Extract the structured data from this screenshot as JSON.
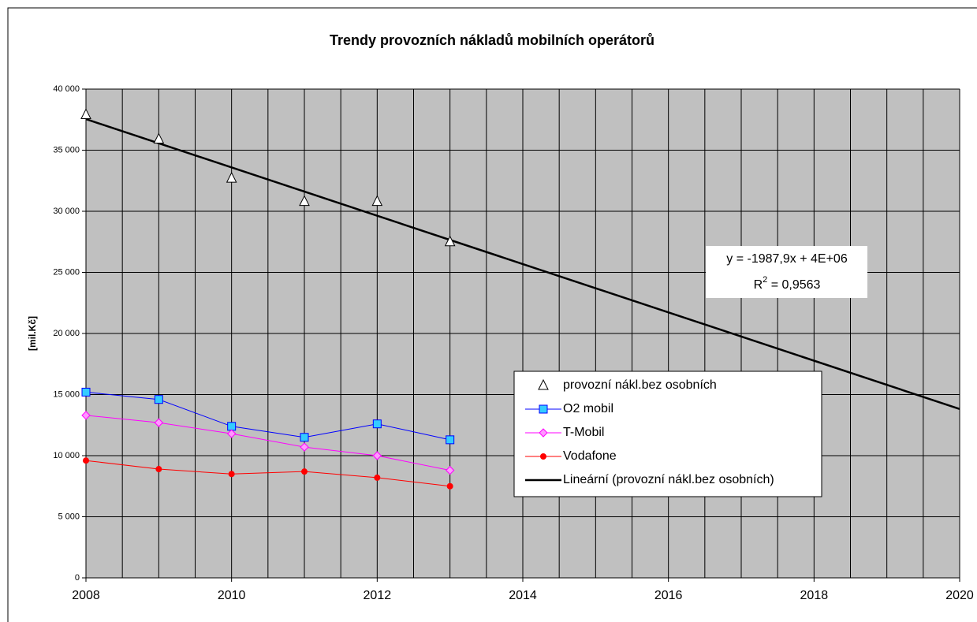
{
  "chart_data": {
    "type": "line",
    "title": "Trendy provozních nákladů mobilních operátorů",
    "y_label": "[mil.Kč]",
    "x": [
      2008,
      2009,
      2010,
      2011,
      2012,
      2013
    ],
    "xlim": [
      2008,
      2020
    ],
    "xticks": [
      2008,
      2010,
      2012,
      2014,
      2016,
      2018,
      2020
    ],
    "xgrid": [
      2008,
      2008.5,
      2009,
      2009.5,
      2010,
      2010.5,
      2011,
      2011.5,
      2012,
      2012.5,
      2013,
      2013.5,
      2014,
      2014.5,
      2015,
      2015.5,
      2016,
      2016.5,
      2017,
      2017.5,
      2018,
      2018.5,
      2019,
      2019.5,
      2020
    ],
    "ylim": [
      0,
      40000
    ],
    "yticks": [
      0,
      {
        "value": 5000,
        "label": "5 000"
      },
      {
        "value": 10000,
        "label": "10 000"
      },
      {
        "value": 15000,
        "label": "15 000"
      },
      {
        "value": 20000,
        "label": "20 000"
      },
      {
        "value": 25000,
        "label": "25 000"
      },
      {
        "value": 30000,
        "label": "30 000"
      },
      {
        "value": 35000,
        "label": "35 000"
      },
      {
        "value": 40000,
        "label": "40 000"
      }
    ],
    "grid": true,
    "background": "#c0c0c0",
    "series": [
      {
        "name": "provozní nákl.bez osobních",
        "marker": "triangle",
        "line": false,
        "color": "#000000",
        "fill": "#ffffff",
        "values": [
          37900,
          35900,
          32700,
          30800,
          30800,
          27500
        ],
        "trendline": {
          "name": "Lineární (provozní nákl.bez osobních)",
          "color": "#000000"
        }
      },
      {
        "name": "O2 mobil",
        "marker": "square",
        "line": true,
        "color": "#0000ff",
        "fill": "#33ccff",
        "values": [
          15200,
          14600,
          12400,
          11500,
          12600,
          11300
        ]
      },
      {
        "name": "T-Mobil",
        "marker": "diamond",
        "line": true,
        "color": "#ff00ff",
        "fill": "#ff99ff",
        "values": [
          13300,
          12700,
          11800,
          10700,
          10000,
          8800
        ]
      },
      {
        "name": "Vodafone",
        "marker": "circle",
        "line": true,
        "color": "#ff0000",
        "fill": "#ff0000",
        "values": [
          9600,
          8900,
          8500,
          8700,
          8200,
          7500
        ]
      }
    ],
    "annotation": {
      "equation": "y = -1987,9x + 4E+06",
      "r2": {
        "base": "R",
        "sup": "2",
        "rest": " = 0,9563"
      }
    }
  }
}
